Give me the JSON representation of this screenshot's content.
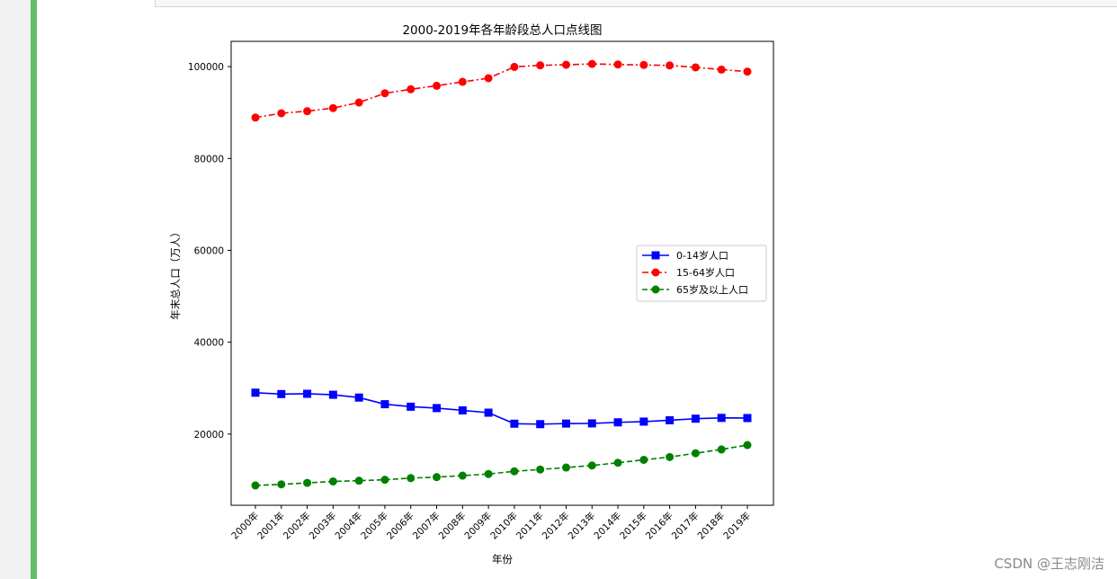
{
  "watermark": "CSDN @王志刚洁",
  "colors": {
    "accent": "#66bb6a",
    "series0": "#0000ff",
    "series1": "#ff0000",
    "series2": "#008000"
  },
  "chart_data": {
    "type": "line",
    "title": "2000-2019年各年龄段总人口点线图",
    "xlabel": "年份",
    "ylabel": "年末总人口（万人）",
    "categories": [
      "2000年",
      "2001年",
      "2002年",
      "2003年",
      "2004年",
      "2005年",
      "2006年",
      "2007年",
      "2008年",
      "2009年",
      "2010年",
      "2011年",
      "2012年",
      "2013年",
      "2014年",
      "2015年",
      "2016年",
      "2017年",
      "2018年",
      "2019年"
    ],
    "ylim": [
      4500,
      105500
    ],
    "yticks": [
      20000,
      40000,
      60000,
      80000,
      100000
    ],
    "legend_position": "center-right",
    "series": [
      {
        "name": "0-14岁人口",
        "color": "#0000ff",
        "marker": "square",
        "linestyle": "solid",
        "values": [
          29012,
          28716,
          28774,
          28559,
          27947,
          26504,
          25961,
          25660,
          25166,
          24659,
          22259,
          22164,
          22287,
          22329,
          22558,
          22715,
          23008,
          23348,
          23523,
          23492
        ]
      },
      {
        "name": "15-64岁人口",
        "color": "#ff0000",
        "marker": "circle",
        "linestyle": "dashdot",
        "values": [
          88910,
          89849,
          90302,
          90976,
          92184,
          94197,
          95068,
          95833,
          96680,
          97484,
          99938,
          100283,
          100403,
          100582,
          100469,
          100361,
          100260,
          99829,
          99357,
          98910
        ]
      },
      {
        "name": "65岁及以上人口",
        "color": "#008000",
        "marker": "circle",
        "linestyle": "dashed",
        "values": [
          8821,
          9062,
          9377,
          9692,
          9857,
          10055,
          10419,
          10636,
          10956,
          11307,
          11894,
          12288,
          12714,
          13161,
          13755,
          14386,
          15003,
          15831,
          16658,
          17603
        ]
      }
    ]
  }
}
